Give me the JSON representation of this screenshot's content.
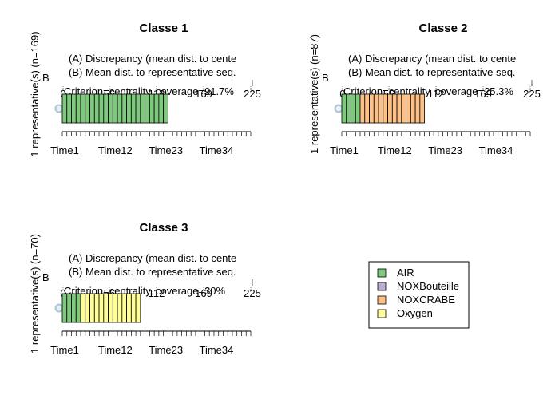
{
  "chart_data": [
    {
      "type": "bar",
      "title": "Classe 1",
      "ylabel": "1 representative(s) (n=169)",
      "line_a": "(A) Discrepancy (mean dist. to cente",
      "line_b": "(B) Mean dist. to representative seq.",
      "side_label": "B",
      "criterion": "Criterion=centrality, coverage=91.7%",
      "top_ticks": [
        "0",
        "56",
        "112",
        "169",
        "225"
      ],
      "xlabels": [
        "Time1",
        "Time12",
        "Time23",
        "Time34"
      ],
      "xlim": [
        0,
        41
      ],
      "sequence": [
        {
          "state": "AIR",
          "start": 0,
          "end": 23
        }
      ]
    },
    {
      "type": "bar",
      "title": "Classe 2",
      "ylabel": "1 representative(s) (n=87)",
      "line_a": "(A) Discrepancy (mean dist. to cente",
      "line_b": "(B) Mean dist. to representative seq.",
      "side_label": "B",
      "criterion": "Criterion=centrality, coverage=25.3%",
      "top_ticks": [
        "0",
        "56",
        "112",
        "169",
        "225"
      ],
      "xlabels": [
        "Time1",
        "Time12",
        "Time23",
        "Time34"
      ],
      "xlim": [
        0,
        41
      ],
      "sequence": [
        {
          "state": "AIR",
          "start": 0,
          "end": 4
        },
        {
          "state": "NOXCRABE",
          "start": 4,
          "end": 18
        }
      ]
    },
    {
      "type": "bar",
      "title": "Classe 3",
      "ylabel": "1 representative(s) (n=70)",
      "line_a": "(A) Discrepancy (mean dist. to cente",
      "line_b": "(B) Mean dist. to representative seq.",
      "side_label": "B",
      "criterion": "Criterion=centrality, coverage=30%",
      "top_ticks": [
        "0",
        "56",
        "112",
        "169",
        "225"
      ],
      "xlabels": [
        "Time1",
        "Time12",
        "Time23",
        "Time34"
      ],
      "xlim": [
        0,
        41
      ],
      "sequence": [
        {
          "state": "AIR",
          "start": 0,
          "end": 4
        },
        {
          "state": "Oxygen",
          "start": 4,
          "end": 17
        }
      ]
    }
  ],
  "legend": {
    "placement": "bottom-right",
    "items": [
      {
        "label": "AIR",
        "color": "#7fc97f"
      },
      {
        "label": "NOXBouteille",
        "color": "#beaed4"
      },
      {
        "label": "NOXCRABE",
        "color": "#fdc086"
      },
      {
        "label": "Oxygen",
        "color": "#ffff99"
      }
    ]
  }
}
